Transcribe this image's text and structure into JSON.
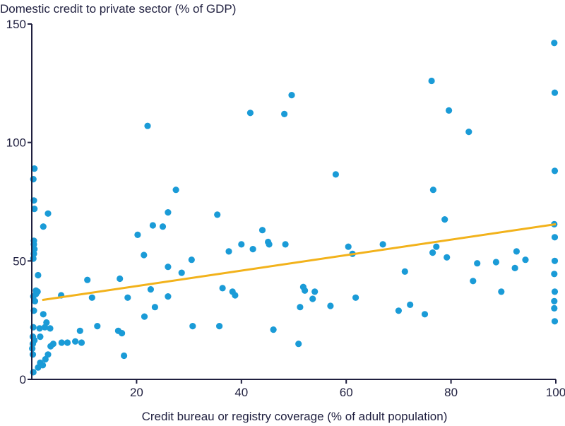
{
  "chart_data": {
    "type": "scatter",
    "title": "Domestic credit to private sector (% of GDP)",
    "xlabel": "Credit bureau or registry coverage (% of adult population)",
    "ylabel": "",
    "xlim": [
      0,
      100
    ],
    "ylim": [
      0,
      150
    ],
    "x_ticks": [
      20,
      40,
      60,
      80,
      100
    ],
    "y_ticks": [
      0,
      50,
      100,
      150
    ],
    "grid": false,
    "point_color": "#1a9bd7",
    "trend_color": "#f2b21b",
    "axis_color": "#1f1f3f",
    "trendline": {
      "x": [
        2,
        100
      ],
      "y": [
        33.5,
        65.5
      ]
    },
    "points": [
      [
        0.3,
        3
      ],
      [
        0.2,
        10.5
      ],
      [
        0.1,
        13
      ],
      [
        0.2,
        15
      ],
      [
        0.5,
        16.5
      ],
      [
        0.2,
        18
      ],
      [
        0.3,
        22
      ],
      [
        0.4,
        29
      ],
      [
        0.3,
        35
      ],
      [
        0.6,
        33
      ],
      [
        0.8,
        36
      ],
      [
        1.1,
        37
      ],
      [
        0.8,
        37.5
      ],
      [
        1.2,
        44
      ],
      [
        0.3,
        51
      ],
      [
        0.4,
        53
      ],
      [
        0.5,
        55
      ],
      [
        0.4,
        57
      ],
      [
        0.4,
        58.5
      ],
      [
        0.5,
        72
      ],
      [
        0.4,
        75.5
      ],
      [
        0.3,
        84.5
      ],
      [
        0.5,
        89
      ],
      [
        1.2,
        5
      ],
      [
        1.6,
        7
      ],
      [
        2.1,
        6
      ],
      [
        1.5,
        21.5
      ],
      [
        2.5,
        22
      ],
      [
        2.8,
        24
      ],
      [
        2.2,
        27.5
      ],
      [
        1.6,
        18
      ],
      [
        2.6,
        8.5
      ],
      [
        3.1,
        10.5
      ],
      [
        2.2,
        64.5
      ],
      [
        3.1,
        70
      ],
      [
        3.6,
        14
      ],
      [
        4.1,
        15
      ],
      [
        3.5,
        21.5
      ],
      [
        5.7,
        15.5
      ],
      [
        6.8,
        15.5
      ],
      [
        8.3,
        16
      ],
      [
        9.5,
        15.5
      ],
      [
        9.2,
        20.5
      ],
      [
        10.6,
        42
      ],
      [
        11.5,
        34.5
      ],
      [
        12.5,
        22.5
      ],
      [
        5.6,
        35.5
      ],
      [
        16.5,
        20.5
      ],
      [
        16.8,
        42.5
      ],
      [
        17.2,
        19.5
      ],
      [
        17.6,
        10
      ],
      [
        18.3,
        34.5
      ],
      [
        20.2,
        61
      ],
      [
        21.4,
        52.5
      ],
      [
        21.5,
        26.5
      ],
      [
        22.1,
        107
      ],
      [
        22.7,
        38
      ],
      [
        23.1,
        65
      ],
      [
        23.5,
        30.5
      ],
      [
        25,
        64.5
      ],
      [
        26,
        70.5
      ],
      [
        26,
        47.5
      ],
      [
        26,
        35
      ],
      [
        27.5,
        80
      ],
      [
        28.6,
        45
      ],
      [
        30.5,
        50.5
      ],
      [
        30.7,
        22.5
      ],
      [
        35.4,
        69.5
      ],
      [
        35.8,
        22.5
      ],
      [
        36.4,
        38.5
      ],
      [
        37.6,
        54
      ],
      [
        38.3,
        37
      ],
      [
        38.8,
        35.5
      ],
      [
        40,
        57
      ],
      [
        41.7,
        112.5
      ],
      [
        42.2,
        55
      ],
      [
        44,
        63
      ],
      [
        45.1,
        58
      ],
      [
        45.3,
        57
      ],
      [
        46.1,
        21
      ],
      [
        48.2,
        112
      ],
      [
        48.4,
        57
      ],
      [
        49.6,
        120
      ],
      [
        50.9,
        15
      ],
      [
        51.2,
        30.5
      ],
      [
        51.8,
        39
      ],
      [
        52.1,
        37.5
      ],
      [
        53.6,
        34
      ],
      [
        54,
        37
      ],
      [
        57,
        31
      ],
      [
        58,
        86.5
      ],
      [
        60.4,
        56
      ],
      [
        61.2,
        53
      ],
      [
        61.8,
        34.5
      ],
      [
        67,
        57
      ],
      [
        70,
        29
      ],
      [
        71.2,
        45.5
      ],
      [
        72.2,
        31.5
      ],
      [
        75,
        27.5
      ],
      [
        76.3,
        126
      ],
      [
        76.5,
        53.5
      ],
      [
        76.6,
        80
      ],
      [
        77.2,
        56
      ],
      [
        78.8,
        67.5
      ],
      [
        79.2,
        51.5
      ],
      [
        79.6,
        113.5
      ],
      [
        83.4,
        104.5
      ],
      [
        84.2,
        41.5
      ],
      [
        85,
        49
      ],
      [
        88.6,
        49.5
      ],
      [
        89.6,
        37
      ],
      [
        92.2,
        47
      ],
      [
        92.5,
        54
      ],
      [
        94.2,
        50.5
      ],
      [
        99.7,
        142
      ],
      [
        99.8,
        121
      ],
      [
        99.8,
        88
      ],
      [
        99.7,
        65.5
      ],
      [
        99.8,
        60
      ],
      [
        99.8,
        50
      ],
      [
        99.7,
        44.5
      ],
      [
        99.8,
        37
      ],
      [
        99.7,
        33
      ],
      [
        99.7,
        30
      ],
      [
        99.8,
        24.5
      ]
    ]
  }
}
